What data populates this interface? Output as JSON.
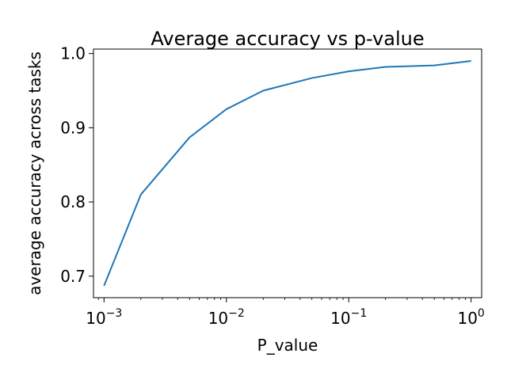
{
  "chart_data": {
    "type": "line",
    "title": "Average accuracy vs p-value",
    "xlabel": "P_value",
    "ylabel": "average accuracy across tasks",
    "x_scale": "log",
    "xlim": [
      0.00082,
      1.22
    ],
    "ylim": [
      0.671,
      1.006
    ],
    "grid": false,
    "legend": "none",
    "x_ticks": [
      {
        "value": 0.001,
        "base": "10",
        "exp": "−3"
      },
      {
        "value": 0.01,
        "base": "10",
        "exp": "−2"
      },
      {
        "value": 0.1,
        "base": "10",
        "exp": "−1"
      },
      {
        "value": 1,
        "base": "10",
        "exp": "0"
      }
    ],
    "y_ticks": [
      {
        "value": 0.7,
        "label": "0.7"
      },
      {
        "value": 0.8,
        "label": "0.8"
      },
      {
        "value": 0.9,
        "label": "0.9"
      },
      {
        "value": 1.0,
        "label": "1.0"
      }
    ],
    "series": [
      {
        "color": "#1f77b4",
        "x": [
          0.001,
          0.002,
          0.005,
          0.01,
          0.02,
          0.05,
          0.1,
          0.2,
          0.5,
          1
        ],
        "y": [
          0.687,
          0.81,
          0.887,
          0.925,
          0.95,
          0.967,
          0.976,
          0.982,
          0.984,
          0.99
        ]
      }
    ]
  }
}
